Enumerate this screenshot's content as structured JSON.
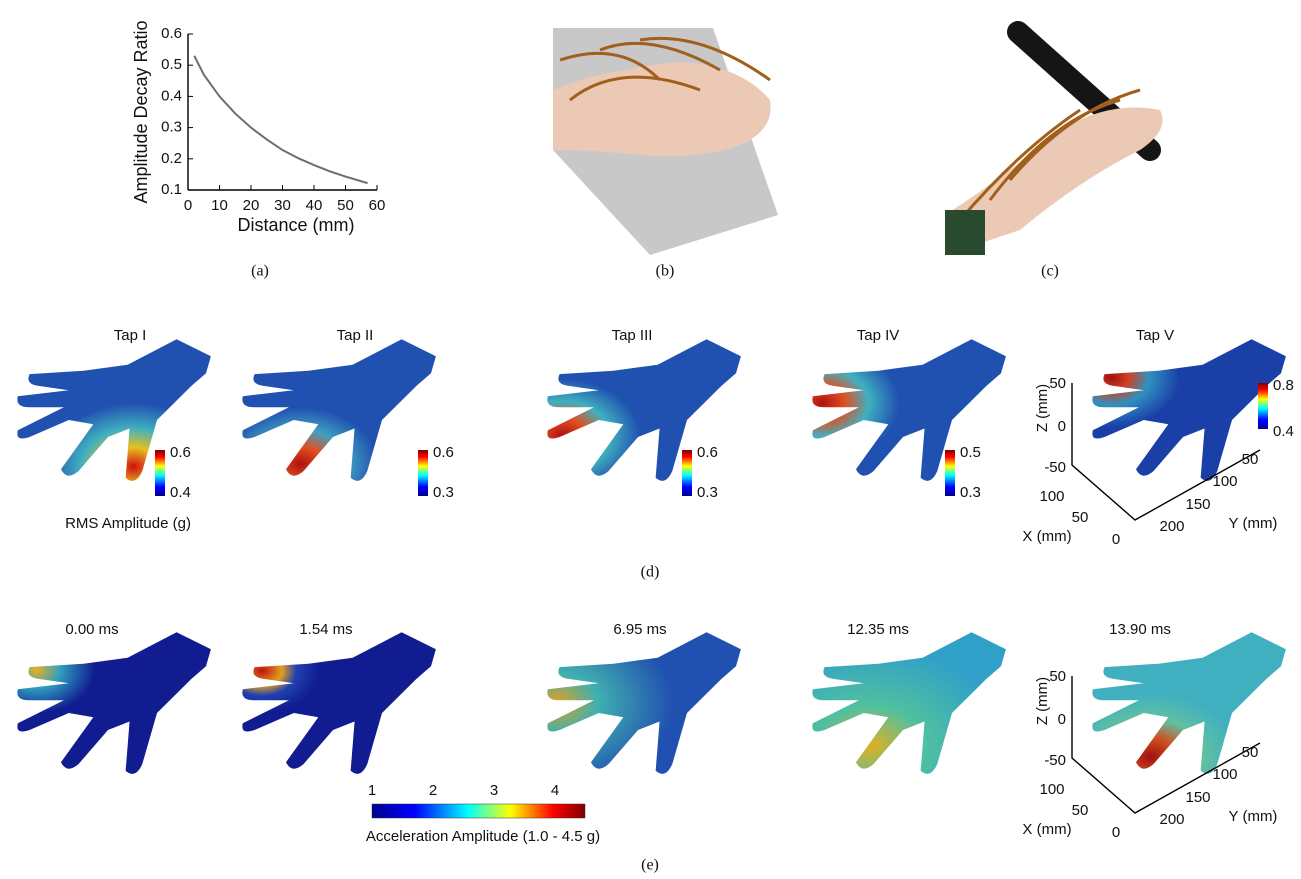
{
  "chart_data": {
    "type": "line",
    "xlabel": "Distance (mm)",
    "ylabel": "Amplitude Decay Ratio",
    "x": [
      2,
      5,
      10,
      15,
      20,
      25,
      30,
      35,
      40,
      45,
      50,
      57
    ],
    "series": [
      {
        "color": "#6e6e6e",
        "values": [
          0.53,
          0.47,
          0.4,
          0.345,
          0.3,
          0.262,
          0.228,
          0.202,
          0.18,
          0.16,
          0.143,
          0.122
        ]
      }
    ],
    "xlim": [
      0,
      60
    ],
    "ylim": [
      0.1,
      0.6
    ],
    "xticks": [
      0,
      10,
      20,
      30,
      40,
      50,
      60
    ],
    "yticks": [
      0.1,
      0.2,
      0.3,
      0.4,
      0.5,
      0.6
    ]
  },
  "captions": [
    "(a)",
    "(b)",
    "(c)",
    "(d)",
    "(e)"
  ],
  "panel_d": {
    "titles": [
      "Tap I",
      "Tap II",
      "Tap III",
      "Tap IV",
      "Tap V"
    ],
    "colorbars": [
      [
        "0.6",
        "0.4"
      ],
      [
        "0.6",
        "0.3"
      ],
      [
        "0.6",
        "0.3"
      ],
      [
        "0.5",
        "0.3"
      ],
      [
        "0.8",
        "0.4"
      ]
    ],
    "colorbar_label": "RMS Amplitude (g)"
  },
  "panel_e": {
    "titles": [
      "0.00 ms",
      "1.54 ms",
      "6.95 ms",
      "12.35 ms",
      "13.90 ms"
    ],
    "colorbar_ticks": [
      "1",
      "2",
      "3",
      "4"
    ],
    "colorbar_label": "Acceleration Amplitude (1.0 - 4.5 g)"
  },
  "axes3d": {
    "z_label": "Z (mm)",
    "z_ticks": [
      "50",
      "0",
      "-50"
    ],
    "x_label": "X (mm)",
    "x_ticks": [
      "100",
      "50",
      "0"
    ],
    "y_label": "Y (mm)",
    "y_ticks": [
      "50",
      "100",
      "150",
      "200"
    ]
  }
}
